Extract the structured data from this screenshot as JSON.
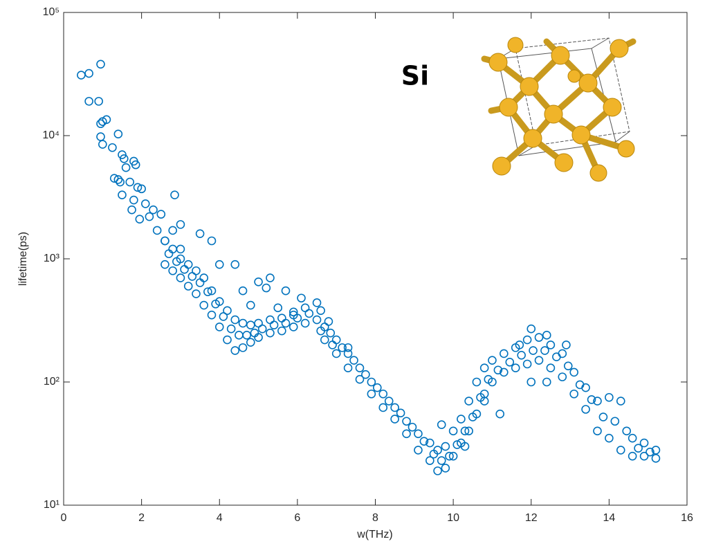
{
  "chart_data": {
    "type": "scatter",
    "xlabel": "w(THz)",
    "ylabel": "lifetime(ps)",
    "annotation": "Si",
    "log_y": true,
    "color": "#0072BD",
    "xlim": [
      0,
      16
    ],
    "xticks": [
      0,
      2,
      4,
      6,
      8,
      10,
      12,
      14,
      16
    ],
    "ylim": [
      10,
      100000
    ],
    "yticks": [
      {
        "value": 10,
        "label": "10¹"
      },
      {
        "value": 100,
        "label": "10²"
      },
      {
        "value": 1000,
        "label": "10³"
      },
      {
        "value": 10000,
        "label": "10⁴"
      },
      {
        "value": 100000,
        "label": "10⁵"
      }
    ],
    "series": [
      {
        "name": "lifetime",
        "color": "#0072BD",
        "x": [
          0.45,
          0.65,
          0.65,
          0.95,
          0.9,
          0.95,
          1.0,
          0.95,
          1.0,
          1.1,
          1.25,
          1.3,
          1.4,
          1.4,
          1.45,
          1.5,
          1.55,
          1.5,
          1.6,
          1.7,
          1.75,
          1.8,
          1.85,
          1.8,
          1.9,
          1.95,
          2.0,
          2.1,
          2.2,
          2.3,
          2.4,
          2.5,
          2.6,
          2.8,
          2.85,
          3.0,
          3.0,
          2.6,
          2.6,
          2.8,
          2.8,
          3.0,
          3.0,
          3.2,
          3.2,
          3.4,
          3.4,
          3.6,
          3.6,
          3.8,
          3.8,
          4.0,
          4.0,
          4.2,
          4.2,
          4.4,
          4.4,
          4.6,
          4.6,
          4.8,
          4.8,
          5.0,
          5.0,
          5.3,
          5.3,
          5.6,
          5.6,
          5.9,
          5.9,
          6.2,
          6.2,
          6.5,
          6.5,
          6.7,
          6.7,
          7.0,
          7.0,
          7.3,
          7.3,
          7.6,
          7.6,
          7.9,
          7.9,
          8.2,
          8.2,
          8.5,
          8.5,
          8.8,
          8.8,
          9.1,
          9.1,
          9.4,
          9.4,
          9.6,
          9.6,
          9.8,
          9.8,
          10.0,
          10.0,
          10.2,
          10.2,
          10.4,
          10.4,
          10.6,
          10.6,
          10.8,
          10.8,
          11.0,
          11.0,
          11.3,
          11.3,
          11.6,
          11.6,
          11.9,
          11.9,
          12.2,
          12.2,
          12.5,
          12.5,
          12.8,
          12.8,
          13.1,
          13.1,
          13.4,
          13.4,
          13.7,
          13.7,
          14.0,
          14.0,
          14.3,
          14.3,
          14.6,
          14.6,
          14.9,
          14.9,
          15.2,
          15.2,
          2.7,
          2.9,
          3.1,
          3.3,
          3.5,
          3.7,
          3.9,
          4.1,
          4.3,
          4.5,
          4.7,
          4.9,
          5.1,
          5.4,
          5.7,
          6.0,
          6.3,
          6.6,
          6.85,
          7.15,
          7.45,
          7.75,
          8.05,
          8.35,
          8.65,
          8.95,
          9.25,
          9.5,
          9.7,
          9.9,
          10.1,
          10.3,
          10.5,
          10.7,
          10.9,
          11.15,
          11.45,
          11.75,
          12.05,
          12.35,
          12.65,
          12.95,
          13.25,
          13.55,
          13.85,
          14.15,
          14.45,
          14.75,
          15.05,
          3.5,
          3.8,
          4.0,
          4.4,
          4.6,
          5.0,
          5.2,
          5.3,
          5.5,
          5.7,
          6.1,
          5.9,
          4.8,
          6.8,
          6.6,
          6.9,
          7.3,
          9.7,
          10.3,
          10.8,
          11.2,
          11.7,
          12.0,
          12.0,
          12.4,
          12.4,
          12.9
        ],
        "values": [
          31000,
          32000,
          19000,
          38000,
          19000,
          12500,
          13000,
          9800,
          8500,
          13500,
          8000,
          4500,
          4400,
          10300,
          4200,
          7000,
          6500,
          3300,
          5500,
          4200,
          2500,
          6200,
          5800,
          3000,
          3800,
          2100,
          3700,
          2800,
          2200,
          2500,
          1700,
          2300,
          1400,
          1700,
          3300,
          1200,
          1900,
          1400,
          900,
          1200,
          800,
          1000,
          700,
          900,
          600,
          800,
          520,
          700,
          420,
          550,
          350,
          450,
          280,
          380,
          220,
          320,
          180,
          300,
          190,
          290,
          210,
          300,
          230,
          320,
          250,
          330,
          260,
          370,
          280,
          400,
          300,
          440,
          320,
          280,
          220,
          220,
          170,
          170,
          130,
          130,
          105,
          100,
          80,
          80,
          62,
          62,
          50,
          48,
          38,
          38,
          28,
          32,
          23,
          28,
          19,
          30,
          20,
          40,
          25,
          50,
          32,
          70,
          40,
          100,
          55,
          130,
          80,
          150,
          100,
          170,
          120,
          190,
          130,
          220,
          140,
          230,
          150,
          200,
          130,
          170,
          110,
          120,
          80,
          90,
          60,
          70,
          40,
          75,
          35,
          70,
          28,
          35,
          25,
          32,
          25,
          28,
          24,
          1100,
          950,
          820,
          720,
          640,
          540,
          430,
          340,
          270,
          240,
          240,
          250,
          270,
          290,
          300,
          330,
          360,
          380,
          250,
          190,
          150,
          115,
          90,
          70,
          56,
          43,
          33,
          26,
          23,
          25,
          31,
          40,
          52,
          75,
          105,
          125,
          145,
          165,
          180,
          180,
          160,
          135,
          95,
          72,
          52,
          48,
          40,
          29,
          27,
          1600,
          1400,
          900,
          900,
          550,
          650,
          580,
          700,
          400,
          550,
          480,
          350,
          420,
          310,
          260,
          200,
          190,
          45,
          30,
          70,
          55,
          200,
          100,
          270,
          240,
          100,
          200
        ]
      }
    ]
  }
}
